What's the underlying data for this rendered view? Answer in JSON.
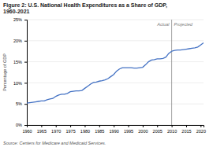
{
  "chart_data": {
    "type": "line",
    "title": "Figure 2: U.S. National Health Expenditures as a Share of GDP,\n1960-2021",
    "y_label": "Percentage of GDP",
    "source": "Source: Centers for Medicare and Medicaid Services.",
    "x": [
      1960,
      1961,
      1962,
      1963,
      1964,
      1965,
      1966,
      1967,
      1968,
      1969,
      1970,
      1971,
      1972,
      1973,
      1974,
      1975,
      1976,
      1977,
      1978,
      1979,
      1980,
      1981,
      1982,
      1983,
      1984,
      1985,
      1986,
      1987,
      1988,
      1989,
      1990,
      1991,
      1992,
      1993,
      1994,
      1995,
      1996,
      1997,
      1998,
      1999,
      2000,
      2001,
      2002,
      2003,
      2004,
      2005,
      2006,
      2007,
      2008,
      2009,
      2010,
      2011,
      2012,
      2013,
      2014,
      2015,
      2016,
      2017,
      2018,
      2019,
      2020,
      2021
    ],
    "series": [
      {
        "name": "Actual",
        "color": "#4472C4",
        "values": [
          0.052,
          0.053,
          0.054,
          0.055,
          0.056,
          0.057,
          0.057,
          0.06,
          0.062,
          0.063,
          0.068,
          0.071,
          0.073,
          0.073,
          0.075,
          0.079,
          0.08,
          0.081,
          0.081,
          0.082,
          0.087,
          0.092,
          0.097,
          0.101,
          0.102,
          0.104,
          0.105,
          0.107,
          0.11,
          0.115,
          0.12,
          0.128,
          0.133,
          0.136,
          0.136,
          0.136,
          0.136,
          0.135,
          0.135,
          0.136,
          0.137,
          0.143,
          0.15,
          0.154,
          0.155,
          0.157,
          0.157,
          0.158,
          0.161,
          0.17,
          0.175,
          null,
          null,
          null,
          null,
          null,
          null,
          null,
          null,
          null,
          null,
          null
        ]
      },
      {
        "name": "Projected",
        "color": "#4472C4",
        "values": [
          null,
          null,
          null,
          null,
          null,
          null,
          null,
          null,
          null,
          null,
          null,
          null,
          null,
          null,
          null,
          null,
          null,
          null,
          null,
          null,
          null,
          null,
          null,
          null,
          null,
          null,
          null,
          null,
          null,
          null,
          null,
          null,
          null,
          null,
          null,
          null,
          null,
          null,
          null,
          null,
          null,
          null,
          null,
          null,
          null,
          null,
          null,
          null,
          null,
          null,
          0.175,
          0.177,
          0.178,
          0.178,
          0.179,
          0.18,
          0.181,
          0.182,
          0.183,
          0.185,
          0.19,
          0.195
        ]
      }
    ],
    "reference_lines": [
      {
        "x": 2010
      }
    ],
    "xlim": [
      1960,
      2021
    ],
    "ylim": [
      0,
      0.25
    ],
    "xticks": [
      1960,
      1965,
      1970,
      1975,
      1980,
      1985,
      1990,
      1995,
      2000,
      2005,
      2010,
      2015,
      2020
    ],
    "yticks": [
      {
        "value": 0.0,
        "label": "0%"
      },
      {
        "value": 0.05,
        "label": "5%"
      },
      {
        "value": 0.1,
        "label": "10%"
      },
      {
        "value": 0.15,
        "label": "15%"
      },
      {
        "value": 0.2,
        "label": "20%"
      },
      {
        "value": 0.25,
        "label": "25%"
      }
    ],
    "grid": true
  }
}
